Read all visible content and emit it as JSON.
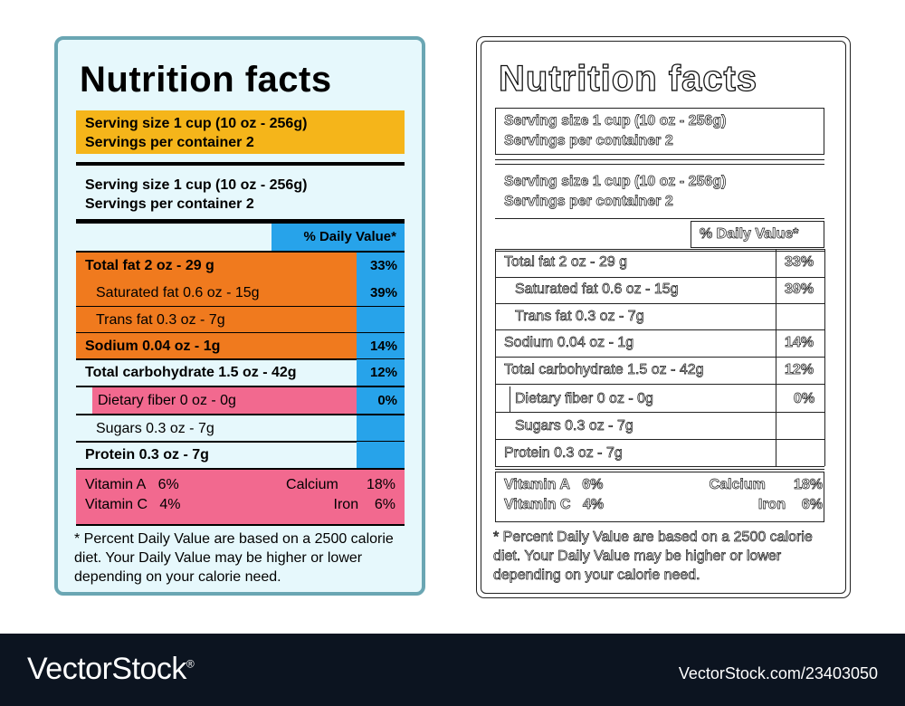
{
  "label": {
    "title": "Nutrition facts",
    "serving_size": "Serving size 1 cup (10 oz - 256g)",
    "servings_per_container": "Servings per container 2",
    "daily_value_header": "% Daily Value*",
    "rows": [
      {
        "label": "Total fat 2 oz - 29 g",
        "percent": "33%"
      },
      {
        "label": "Saturated fat 0.6 oz - 15g",
        "percent": "39%"
      },
      {
        "label": "Trans fat 0.3 oz - 7g",
        "percent": ""
      },
      {
        "label": "Sodium 0.04 oz - 1g",
        "percent": "14%"
      },
      {
        "label": "Total carbohydrate 1.5 oz - 42g",
        "percent": "12%"
      },
      {
        "label": "Dietary fiber 0 oz - 0g",
        "percent": "0%"
      },
      {
        "label": "Sugars 0.3 oz - 7g",
        "percent": ""
      },
      {
        "label": "Protein 0.3 oz - 7g",
        "percent": ""
      }
    ],
    "vitamins": {
      "vitamin_a": "Vitamin A",
      "vitamin_a_pct": "6%",
      "calcium": "Calcium",
      "calcium_pct": "18%",
      "vitamin_c": "Vitamin C",
      "vitamin_c_pct": "4%",
      "iron": "Iron",
      "iron_pct": "6%"
    },
    "footnote": "* Percent Daily Value are based on a 2500 calorie diet. Your Daily Value may be higher or lower depending on your calorie need."
  },
  "footer": {
    "brand": "VectorStock",
    "registered": "®",
    "image_id": "VectorStock.com/23403050"
  },
  "colors": {
    "label_border": "#6aa6b3",
    "label_bg": "#e6f8fc",
    "serving_box": "#f5b51a",
    "orange_rows": "#f07a1e",
    "pink_rows": "#f2698f",
    "blue_column": "#27a3ea",
    "footer_bg": "#0c1420"
  }
}
